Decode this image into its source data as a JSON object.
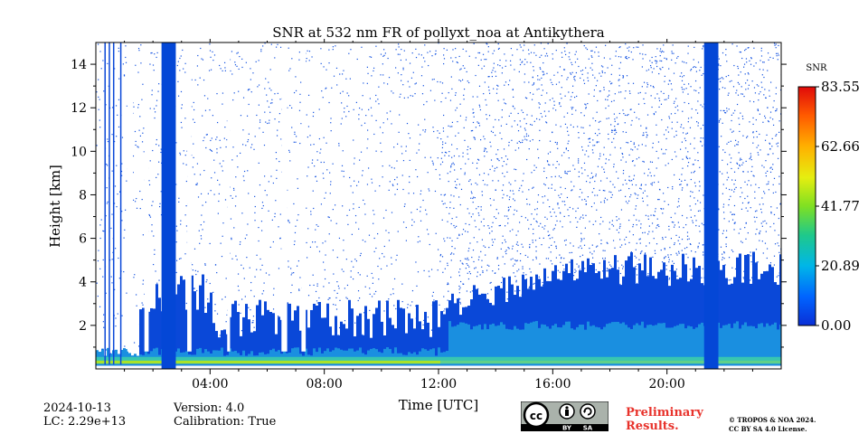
{
  "chart_data": {
    "type": "heatmap",
    "title": "SNR at 532 nm FR of pollyxt_noa at Antikythera",
    "xlabel": "Time [UTC]",
    "ylabel": "Height [km]",
    "xlim": [
      0,
      24
    ],
    "ylim": [
      0,
      15
    ],
    "x_ticks": [
      4,
      8,
      12,
      16,
      20
    ],
    "x_tick_labels": [
      "04:00",
      "08:00",
      "12:00",
      "16:00",
      "20:00"
    ],
    "y_ticks": [
      2,
      4,
      6,
      8,
      10,
      12,
      14
    ],
    "y_tick_labels": [
      "2",
      "4",
      "6",
      "8",
      "10",
      "12",
      "14"
    ],
    "colorbar": {
      "label": "SNR",
      "min": 0.0,
      "max": 83.55,
      "tick_labels": [
        "0.00",
        "20.89",
        "41.77",
        "62.66",
        "83.55"
      ]
    },
    "cloud_columns_hours": [
      [
        2.3,
        2.8
      ],
      [
        21.3,
        21.8
      ]
    ],
    "early_streak_hours": [
      0.3,
      0.45,
      0.6,
      0.85
    ]
  },
  "info": {
    "date": "2024-10-13",
    "lc": "LC: 2.29e+13",
    "version": "Version: 4.0",
    "calibration": "Calibration: True"
  },
  "badge": {
    "cc": "cc",
    "by": "BY",
    "sa": "SA"
  },
  "preliminary": [
    "Preliminary",
    "Results."
  ],
  "copyright": [
    "© TROPOS & NOA 2024.",
    "CC BY SA 4.0 License."
  ]
}
